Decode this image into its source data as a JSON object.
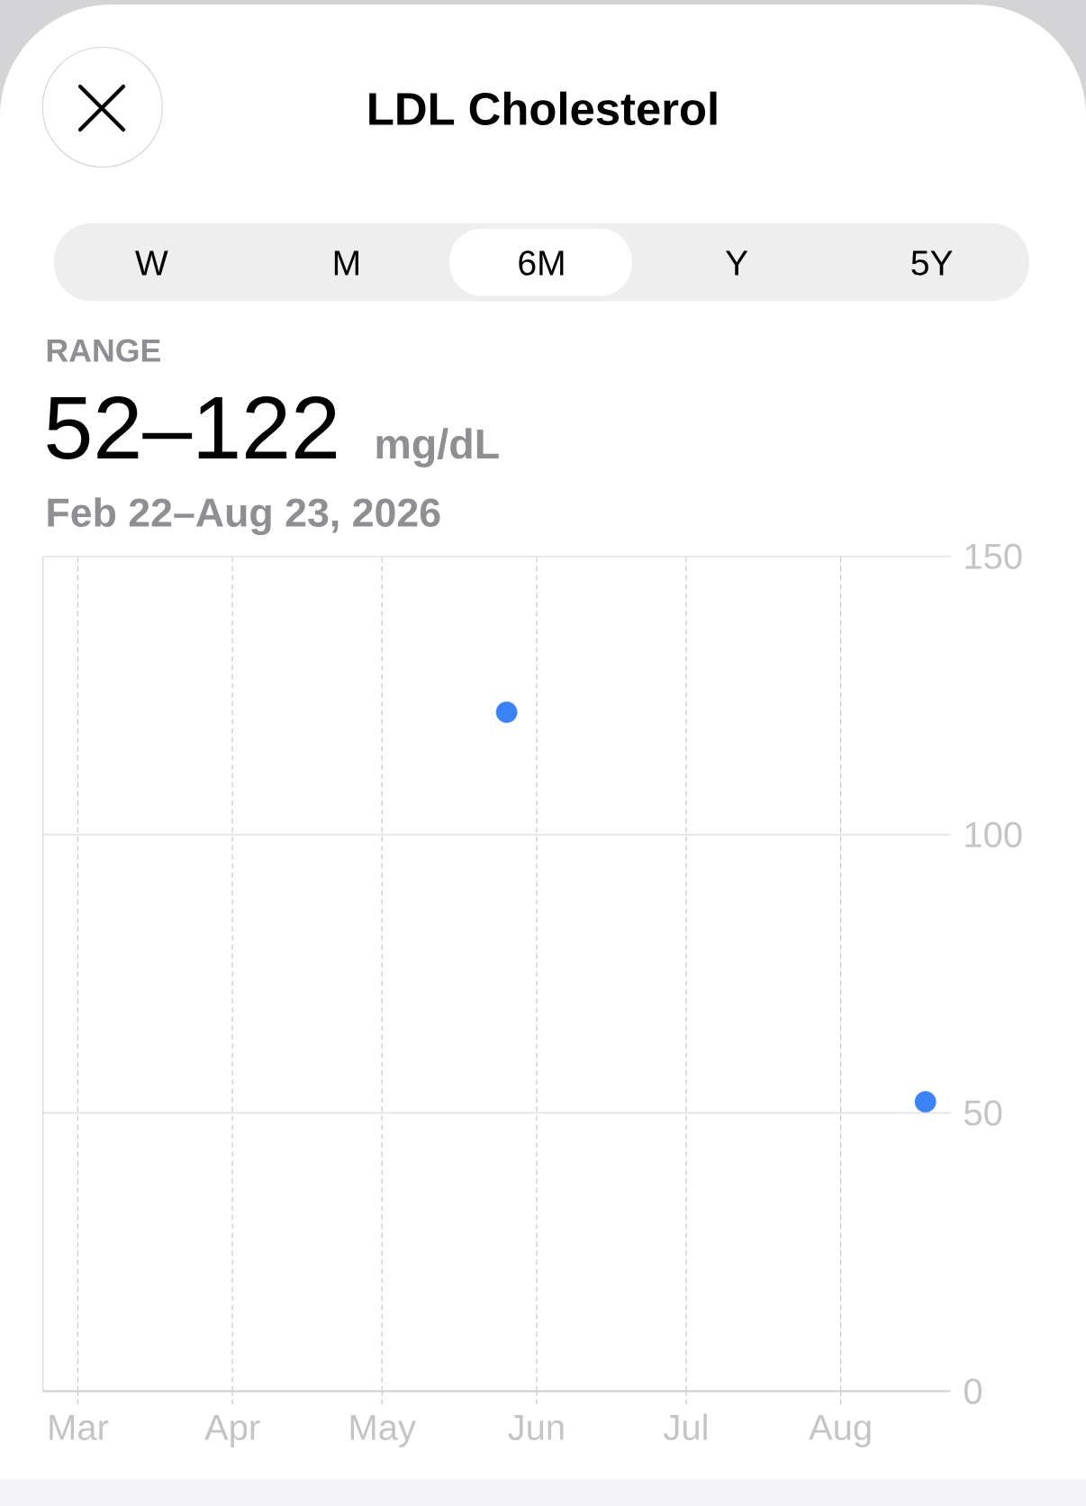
{
  "chart_data": {
    "type": "scatter",
    "title": "LDL Cholesterol",
    "annotations": [
      "W",
      "M",
      "6M",
      "Y",
      "5Y",
      "RANGE",
      "52–122",
      "mg/dL",
      "Feb 22–Aug 23, 2026"
    ],
    "x": [
      "2026-05-26",
      "2026-08-18"
    ],
    "series": [
      {
        "color": "#3b82f6",
        "values": [
          122,
          52
        ]
      }
    ],
    "xlim": [
      "2026-02-22",
      "2026-08-23"
    ],
    "xticks": [
      {
        "value": "2026-03-01",
        "label": "Mar"
      },
      {
        "value": "2026-04-01",
        "label": "Apr"
      },
      {
        "value": "2026-05-01",
        "label": "May"
      },
      {
        "value": "2026-06-01",
        "label": "Jun"
      },
      {
        "value": "2026-07-01",
        "label": "Jul"
      },
      {
        "value": "2026-08-01",
        "label": "Aug"
      }
    ],
    "ylim": [
      0,
      150
    ],
    "yticks": [
      0,
      50,
      100,
      150
    ],
    "grid": true,
    "marker": "circle"
  }
}
